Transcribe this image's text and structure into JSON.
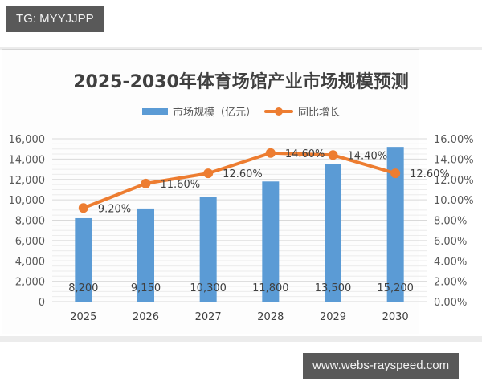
{
  "overlay": {
    "top_tag": "TG: MYYJJPP",
    "bottom_tag": "www.webs-rayspeed.com"
  },
  "chart_data": {
    "type": "bar+line",
    "title": "2025-2030年体育场馆产业市场规模预测",
    "categories": [
      "2025",
      "2026",
      "2027",
      "2028",
      "2029",
      "2030"
    ],
    "series": [
      {
        "name": "市场规模（亿元）",
        "type": "bar",
        "axis": "left",
        "color": "#5b9bd5",
        "values": [
          8200,
          9150,
          10300,
          11800,
          13500,
          15200
        ],
        "labels": [
          "8,200",
          "9,150",
          "10,300",
          "11,800",
          "13,500",
          "15,200"
        ]
      },
      {
        "name": "同比增长",
        "type": "line",
        "axis": "right",
        "color": "#ed7d31",
        "values": [
          9.2,
          11.6,
          12.6,
          14.6,
          14.4,
          12.6
        ],
        "labels": [
          "9.20%",
          "11.60%",
          "12.60%",
          "14.60%",
          "14.40%",
          "12.60%"
        ]
      }
    ],
    "left_axis": {
      "ylim": [
        0,
        16000
      ],
      "ticks": [
        "0",
        "2,000",
        "4,000",
        "6,000",
        "8,000",
        "10,000",
        "12,000",
        "14,000",
        "16,000"
      ]
    },
    "right_axis": {
      "ylim": [
        0,
        16
      ],
      "ticks": [
        "0.00%",
        "2.00%",
        "4.00%",
        "6.00%",
        "8.00%",
        "10.00%",
        "12.00%",
        "14.00%",
        "16.00%"
      ]
    },
    "legend": [
      "市场规模（亿元）",
      "同比增长"
    ],
    "legend_position": "top",
    "grid": true,
    "xlabel": "",
    "ylabel": ""
  }
}
